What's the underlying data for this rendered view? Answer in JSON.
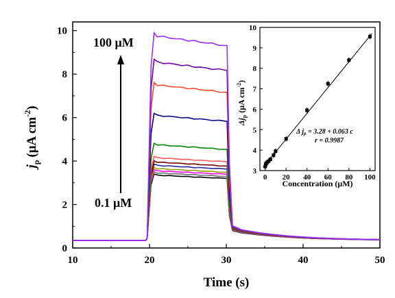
{
  "chart_data": [
    {
      "type": "line",
      "xlabel": "Time (s)",
      "ylabel_main": "j",
      "ylabel_sub": "p",
      "ylabel_unit": "(μA cm",
      "ylabel_sup": "-2",
      "ylabel_close": ")",
      "xlim": [
        10,
        50
      ],
      "ylim": [
        0,
        10.4
      ],
      "x_ticks": [
        10,
        20,
        30,
        40,
        50
      ],
      "y_ticks": [
        0,
        2,
        4,
        6,
        8,
        10
      ],
      "annotations": {
        "top_label": "100 μM",
        "bottom_label": "0.1 μM"
      },
      "baseline": 0.35,
      "on_time": 20,
      "off_time": 30,
      "series": [
        {
          "color": "#000000",
          "plateau": 3.35
        },
        {
          "color": "#6b6b6b",
          "plateau": 3.45
        },
        {
          "color": "#ff00ff",
          "plateau": 3.55
        },
        {
          "color": "#9b9b00",
          "plateau": 3.65
        },
        {
          "color": "#2a2aa0",
          "plateau": 3.8
        },
        {
          "color": "#7a0000",
          "plateau": 3.95
        },
        {
          "color": "#ff5a5a",
          "plateau": 4.15
        },
        {
          "color": "#008800",
          "plateau": 4.75
        },
        {
          "color": "#000088",
          "plateau": 6.1
        },
        {
          "color": "#ff4a2a",
          "plateau": 7.5
        },
        {
          "color": "#7000a0",
          "plateau": 8.55
        },
        {
          "color": "#9a30ff",
          "plateau": 9.75
        }
      ]
    },
    {
      "type": "scatter",
      "xlabel": "Concentration (μM)",
      "ylabel_main": "Δj",
      "ylabel_sub": "p",
      "ylabel_unit": "(μA cm",
      "ylabel_sup": "-2",
      "ylabel_close": ")",
      "xlim": [
        -5,
        105
      ],
      "ylim": [
        3,
        10
      ],
      "x_ticks": [
        0,
        20,
        40,
        60,
        80,
        100
      ],
      "y_ticks": [
        3,
        4,
        5,
        6,
        7,
        8,
        9,
        10
      ],
      "x": [
        0.1,
        0.5,
        1,
        2,
        3,
        5,
        8,
        10,
        20,
        40,
        60,
        80,
        100
      ],
      "y": [
        3.2,
        3.3,
        3.35,
        3.4,
        3.45,
        3.55,
        3.75,
        3.95,
        4.55,
        5.95,
        7.25,
        8.4,
        9.55
      ],
      "fit": {
        "intercept": 3.28,
        "slope": 0.063
      },
      "equation_prefix": "Δ j",
      "equation_sub": "p",
      "equation_rest": " = 3.28 + 0.063 c",
      "r_text": "r = 0.9987"
    }
  ]
}
